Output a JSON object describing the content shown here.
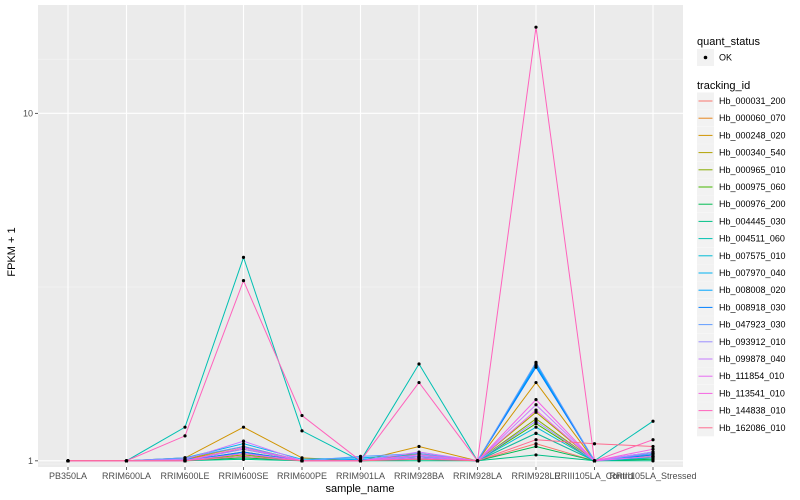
{
  "chart_data": {
    "type": "line",
    "xlabel": "sample_name",
    "ylabel": "FPKM + 1",
    "y_scale": "log10",
    "ylim": [
      0.96,
      20.5
    ],
    "y_ticks": [
      1,
      10
    ],
    "categories": [
      "PB350LA",
      "RRIM600LA",
      "RRIM600LE",
      "RRIM600SE",
      "RRIM600PE",
      "RRIM901LA",
      "RRIM928BA",
      "RRIM928LA",
      "RRIM928LE",
      "RRIII105LA_Control",
      "RRIII105LA_Stressed"
    ],
    "legend": {
      "quant_status_title": "quant_status",
      "quant_status_entries": [
        "OK"
      ],
      "tracking_id_title": "tracking_id"
    },
    "series": [
      {
        "name": "Hb_000031_200",
        "color": "#F8766D",
        "values": [
          1,
          1,
          1.0,
          1.05,
          1.0,
          1.0,
          1.02,
          1,
          1.12,
          1,
          1.03
        ]
      },
      {
        "name": "Hb_000060_070",
        "color": "#E7851E",
        "values": [
          1,
          1,
          1.01,
          1.08,
          1.0,
          1.0,
          1.03,
          1,
          1.2,
          1,
          1.02
        ]
      },
      {
        "name": "Hb_000248_020",
        "color": "#D09400",
        "values": [
          1,
          1,
          1.02,
          1.25,
          1.02,
          1.0,
          1.1,
          1,
          1.68,
          1,
          1.05
        ]
      },
      {
        "name": "Hb_000340_540",
        "color": "#B2A100",
        "values": [
          1,
          1,
          1.01,
          1.1,
          1.0,
          1.0,
          1.05,
          1,
          1.38,
          1,
          1.04
        ]
      },
      {
        "name": "Hb_000965_010",
        "color": "#89AC00",
        "values": [
          1,
          1,
          1.0,
          1.04,
          1.0,
          1.0,
          1.02,
          1,
          1.32,
          1,
          1.02
        ]
      },
      {
        "name": "Hb_000975_060",
        "color": "#45B500",
        "values": [
          1,
          1,
          1.0,
          1.06,
          1.0,
          1.0,
          1.02,
          1,
          1.28,
          1,
          1.03
        ]
      },
      {
        "name": "Hb_000976_200",
        "color": "#00BC51",
        "values": [
          1,
          1,
          1.0,
          1.02,
          1.0,
          1.0,
          1.01,
          1,
          1.1,
          1,
          1.01
        ]
      },
      {
        "name": "Hb_004445_030",
        "color": "#00C087",
        "values": [
          1,
          1,
          1.0,
          1.01,
          1.0,
          1.0,
          1.0,
          1,
          1.04,
          1,
          1.0
        ]
      },
      {
        "name": "Hb_004511_060",
        "color": "#00C0B2",
        "values": [
          1,
          1,
          1.25,
          3.85,
          1.22,
          1.0,
          1.9,
          1,
          1.2,
          1.0,
          1.3
        ]
      },
      {
        "name": "Hb_007575_010",
        "color": "#00BCD6",
        "values": [
          1,
          1,
          1.0,
          1.03,
          1.0,
          1.0,
          1.02,
          1,
          1.25,
          1,
          1.02
        ]
      },
      {
        "name": "Hb_007970_040",
        "color": "#00B3F2",
        "values": [
          1,
          1,
          1.02,
          1.12,
          1.01,
          1.02,
          1.04,
          1,
          1.9,
          1,
          1.06
        ]
      },
      {
        "name": "Hb_008008_020",
        "color": "#00A5FF",
        "values": [
          1,
          1,
          1.01,
          1.05,
          1.0,
          1.01,
          1.03,
          1,
          1.88,
          1,
          1.05
        ]
      },
      {
        "name": "Hb_008918_030",
        "color": "#007FFF",
        "values": [
          1,
          1,
          1.0,
          1.06,
          1.0,
          1.0,
          1.02,
          1,
          1.86,
          1,
          1.04
        ]
      },
      {
        "name": "Hb_047923_030",
        "color": "#619CFF",
        "values": [
          1,
          1,
          1.02,
          1.1,
          1.0,
          1.03,
          1.05,
          1,
          1.92,
          1,
          1.05
        ]
      },
      {
        "name": "Hb_093912_010",
        "color": "#9B8EFF",
        "values": [
          1,
          1,
          1.0,
          1.08,
          1.0,
          1.0,
          1.03,
          1,
          1.3,
          1,
          1.03
        ]
      },
      {
        "name": "Hb_099878_040",
        "color": "#C77CFF",
        "values": [
          1,
          1,
          1.01,
          1.14,
          1.0,
          1.0,
          1.06,
          1,
          1.45,
          1,
          1.06
        ]
      },
      {
        "name": "Hb_111854_010",
        "color": "#E76BF3",
        "values": [
          1,
          1,
          1.0,
          1.05,
          1.0,
          1.0,
          1.02,
          1,
          1.4,
          1,
          1.03
        ]
      },
      {
        "name": "Hb_113541_010",
        "color": "#F564E3",
        "values": [
          1,
          1,
          1.0,
          1.09,
          1.0,
          1.0,
          1.04,
          1,
          1.5,
          1,
          1.08
        ]
      },
      {
        "name": "Hb_144838_010",
        "color": "#FF62BC",
        "values": [
          1,
          1,
          1.18,
          3.3,
          1.35,
          1.0,
          1.68,
          1,
          17.7,
          1.0,
          1.15
        ]
      },
      {
        "name": "Hb_162086_010",
        "color": "#FF6C90",
        "values": [
          1,
          1,
          1.0,
          1.03,
          1.0,
          1.0,
          1.01,
          1,
          1.15,
          1.12,
          1.1
        ]
      }
    ]
  }
}
